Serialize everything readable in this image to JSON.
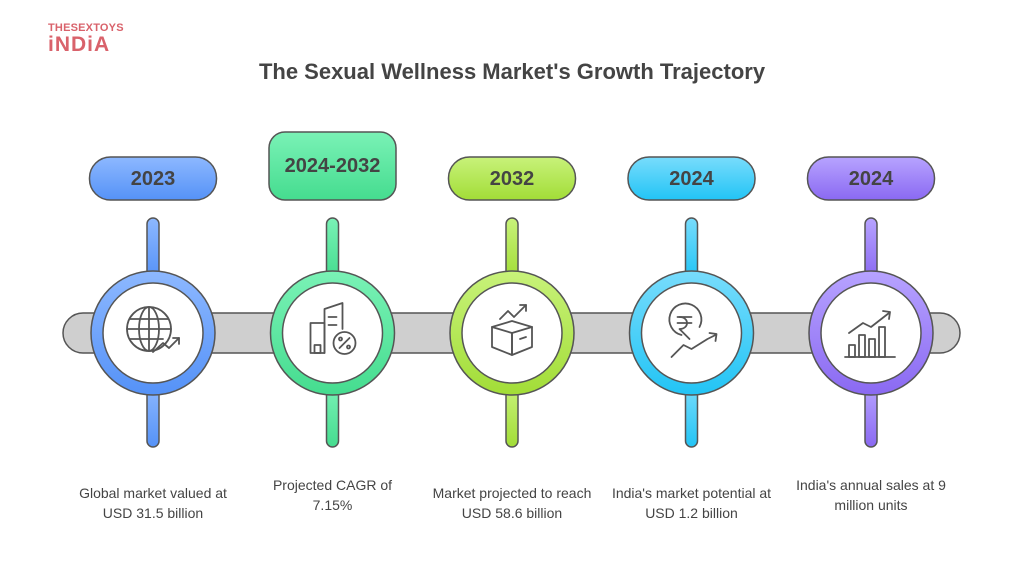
{
  "logo": {
    "line1": "THESEXTOYS",
    "line2": "iNDiA",
    "color": "#d9626b"
  },
  "title": "The Sexual Wellness Market's Growth Trajectory",
  "timeline": {
    "bar_color": "#cfcfcf",
    "items": [
      {
        "period": "2023",
        "description": "Global market valued at USD 31.5 billion",
        "icon": "globe-growth-icon",
        "color_top": "#8db8ff",
        "color_bottom": "#5592f7"
      },
      {
        "period": "2024-2032",
        "description": "Projected CAGR of 7.15%",
        "icon": "buildings-percent-icon",
        "color_top": "#7af2b6",
        "color_bottom": "#45dc8f"
      },
      {
        "period": "2032",
        "description": "Market projected to reach USD 58.6 billion",
        "icon": "box-growth-icon",
        "color_top": "#c8f27a",
        "color_bottom": "#a2dd37"
      },
      {
        "period": "2024",
        "description": "India's market potential at USD 1.2 billion",
        "icon": "rupee-growth-icon",
        "color_top": "#78dcfc",
        "color_bottom": "#22c4f5"
      },
      {
        "period": "2024",
        "description": "India's annual sales at 9 million units",
        "icon": "bar-chart-growth-icon",
        "color_top": "#b7a3ff",
        "color_bottom": "#8a69f2"
      }
    ]
  }
}
